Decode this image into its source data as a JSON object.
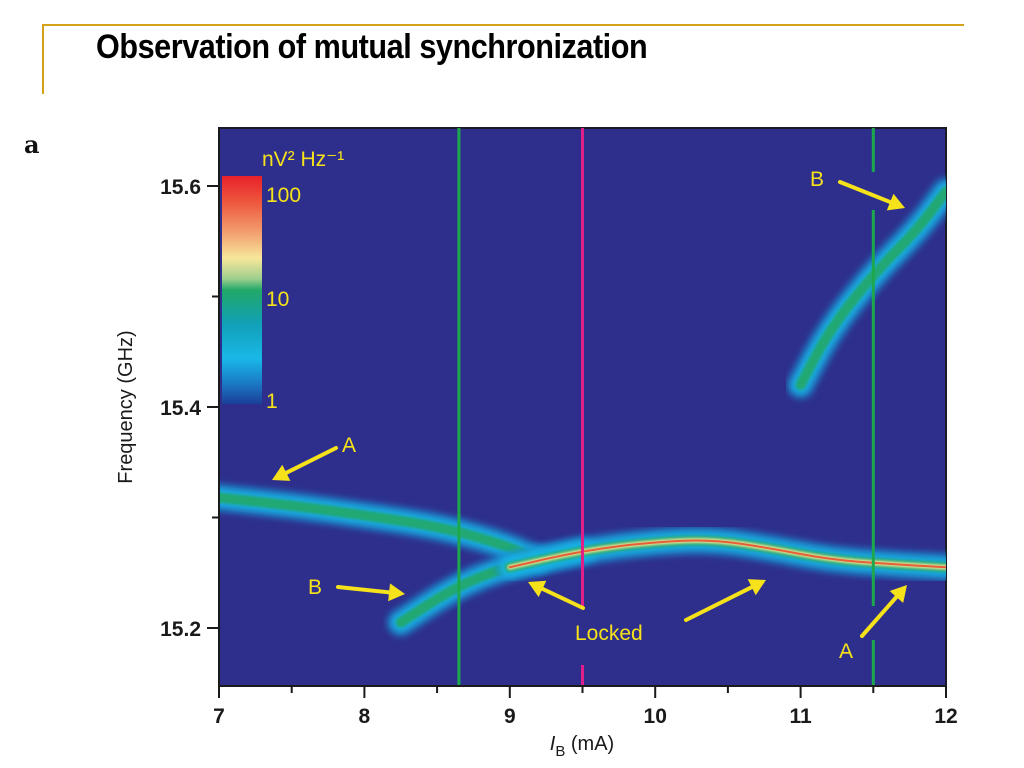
{
  "slide": {
    "title": "Observation of mutual synchronization",
    "panel_label": "a",
    "accent_color": "#d4a21a"
  },
  "chart_data": {
    "type": "heatmap",
    "title": "",
    "xlabel_italic": "I",
    "xlabel_sub": "B",
    "xlabel_rest": " (mA)",
    "xlabel": "I_B (mA)",
    "ylabel": "Frequency (GHz)",
    "xlim": [
      7,
      12
    ],
    "ylim": [
      15.14,
      15.65
    ],
    "xticks": [
      7,
      8,
      9,
      10,
      11,
      12
    ],
    "xminor": [
      7.5,
      8.5,
      9.5,
      10.5,
      11.5
    ],
    "yticks": [
      15.2,
      15.4,
      15.6
    ],
    "yminor": [
      15.3,
      15.5
    ],
    "background_color": "#2e2f8c",
    "colorbar": {
      "label": "nV² Hz⁻¹",
      "scale": "log",
      "ticks": [
        100,
        10,
        1
      ],
      "tick_labels": [
        "100",
        "10",
        "1"
      ],
      "colors": [
        "#e8202a",
        "#f08a58",
        "#f7e79a",
        "#21a868",
        "#11a0b8",
        "#19b8e8",
        "#1a4fa8"
      ]
    },
    "markers": [
      {
        "name": "green-left",
        "x": 8.65,
        "color": "#1ea84e"
      },
      {
        "name": "magenta-center",
        "x": 9.5,
        "color": "#e0208a"
      },
      {
        "name": "green-right",
        "x": 11.5,
        "color": "#1ea84e"
      }
    ],
    "series": [
      {
        "name": "A",
        "points": [
          [
            7.0,
            15.318
          ],
          [
            7.5,
            15.311
          ],
          [
            8.0,
            15.302
          ],
          [
            8.5,
            15.292
          ],
          [
            8.9,
            15.278
          ],
          [
            9.2,
            15.262
          ]
        ],
        "peak_level": 10
      },
      {
        "name": "B",
        "points": [
          [
            8.25,
            15.205
          ],
          [
            8.6,
            15.235
          ],
          [
            8.9,
            15.252
          ],
          [
            9.2,
            15.262
          ],
          [
            9.5,
            15.27
          ]
        ],
        "peak_level": 8
      },
      {
        "name": "Locked",
        "points": [
          [
            9.0,
            15.255
          ],
          [
            9.5,
            15.27
          ],
          [
            10.0,
            15.278
          ],
          [
            10.4,
            15.28
          ],
          [
            10.8,
            15.272
          ],
          [
            11.2,
            15.262
          ],
          [
            11.6,
            15.258
          ],
          [
            12.0,
            15.255
          ]
        ],
        "peak_level": 60
      },
      {
        "name": "B-upper",
        "points": [
          [
            11.0,
            15.42
          ],
          [
            11.2,
            15.47
          ],
          [
            11.5,
            15.52
          ],
          [
            11.8,
            15.56
          ],
          [
            12.0,
            15.595
          ]
        ],
        "peak_level": 8
      }
    ],
    "annotations": [
      {
        "text": "A",
        "target": [
          7.35,
          15.33
        ],
        "label_pos": [
          8.9,
          15.365
        ]
      },
      {
        "text": "B",
        "target": [
          8.27,
          15.215
        ],
        "label_pos": [
          7.85,
          15.222
        ]
      },
      {
        "text": "B",
        "target": [
          11.75,
          15.57
        ],
        "label_pos": [
          11.2,
          15.598
        ]
      },
      {
        "text": "A",
        "target": [
          11.75,
          15.24
        ],
        "label_pos": [
          11.4,
          15.165
        ]
      },
      {
        "text": "Locked",
        "targets": [
          [
            9.1,
            15.24
          ],
          [
            10.8,
            15.22
          ]
        ],
        "label_pos": [
          9.6,
          15.19
        ]
      }
    ]
  }
}
